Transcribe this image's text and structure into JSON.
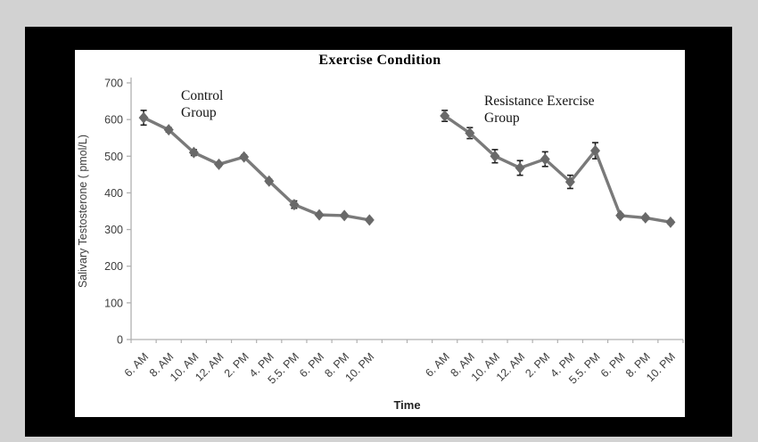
{
  "window": {
    "outer_background": "#d2d2d2",
    "frame_color": "#000000",
    "chart_background": "#ffffff"
  },
  "chart_data": {
    "type": "line",
    "title": "Exercise Condition",
    "xlabel": "Time",
    "ylabel": "Salivary Testosterone ( pmol/L)",
    "ylim": [
      0,
      700
    ],
    "yticks": [
      0,
      100,
      200,
      300,
      400,
      500,
      600,
      700
    ],
    "categories": [
      "6. AM",
      "8. AM",
      "10. AM",
      "12. AM",
      "2. PM",
      "4. PM",
      "5.5. PM",
      "6. PM",
      "8. PM",
      "10. PM"
    ],
    "gap_slots": 2,
    "grid": false,
    "legend_position": "none",
    "marker": "diamond",
    "series": [
      {
        "name": "Control Group",
        "label_lines": [
          "Control",
          "Group"
        ],
        "values": [
          605,
          572,
          510,
          478,
          498,
          432,
          368,
          340,
          338,
          326
        ],
        "errors": [
          20,
          6,
          8,
          5,
          5,
          5,
          10,
          4,
          4,
          4
        ]
      },
      {
        "name": "Resistance Exercise Group",
        "label_lines": [
          "Resistance Exercise",
          "Group"
        ],
        "values": [
          610,
          563,
          500,
          468,
          492,
          430,
          515,
          338,
          332,
          320
        ],
        "errors": [
          15,
          15,
          18,
          20,
          20,
          18,
          22,
          5,
          5,
          5
        ]
      }
    ],
    "axis_color": "#b0b0b0",
    "line_color": "#7a7a7a",
    "marker_color": "#696969",
    "error_color": "#1f1f1f"
  }
}
